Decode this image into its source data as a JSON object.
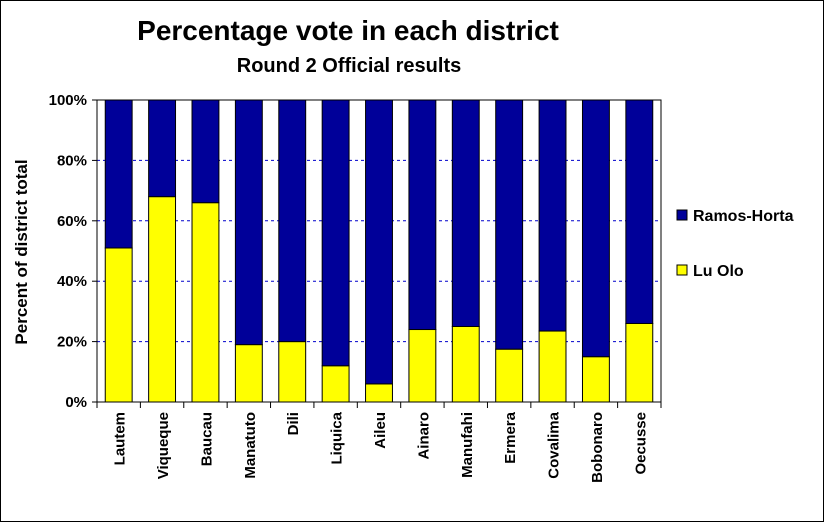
{
  "chart_data": {
    "type": "bar",
    "stacked": true,
    "title": "Percentage vote in each district",
    "subtitle": "Round 2 Official results",
    "ylabel": "Percent of district total",
    "xlabel": "",
    "ylim": [
      0,
      100
    ],
    "yticks": [
      "0%",
      "20%",
      "40%",
      "60%",
      "80%",
      "100%"
    ],
    "grid": true,
    "legend_position": "right",
    "categories": [
      "Lautem",
      "Viqueque",
      "Baucau",
      "Manatuto",
      "Dili",
      "Liquica",
      "Aileu",
      "Ainaro",
      "Manufahi",
      "Ermera",
      "Covalima",
      "Bobonaro",
      "Oecusse"
    ],
    "series": [
      {
        "name": "Lu Olo",
        "color": "#ffff00",
        "values": [
          51,
          68,
          66,
          19,
          20,
          12,
          6,
          24,
          25,
          17.5,
          23.5,
          15,
          26
        ]
      },
      {
        "name": "Ramos-Horta",
        "color": "#000099",
        "values": [
          49,
          32,
          34,
          81,
          80,
          88,
          94,
          76,
          75,
          82.5,
          76.5,
          85,
          74
        ]
      }
    ]
  }
}
